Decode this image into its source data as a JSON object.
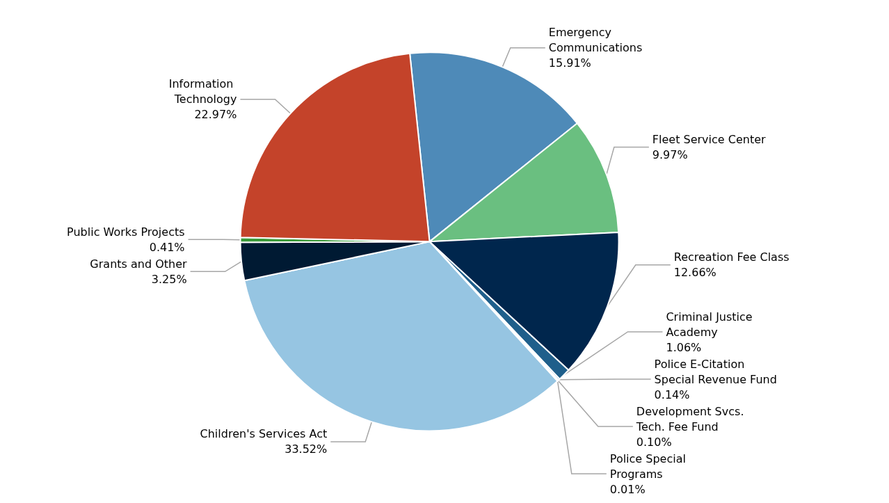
{
  "chart_data": {
    "type": "pie",
    "categories": [
      "Emergency Communications",
      "Fleet Service Center",
      "Recreation Fee Class",
      "Criminal Justice Academy",
      "Police E-Citation Special Revenue Fund",
      "Development Svcs. Tech. Fee Fund",
      "Police Special Programs",
      "Children's Services Act",
      "Grants and Other",
      "Public Works Projects",
      "Information Technology"
    ],
    "values": [
      15.91,
      9.97,
      12.66,
      1.06,
      0.14,
      0.1,
      0.01,
      33.52,
      3.25,
      0.41,
      22.97
    ],
    "value_labels": [
      "15.91%",
      "9.97%",
      "12.66%",
      "1.06%",
      "0.14%",
      "0.10%",
      "0.01%",
      "33.52%",
      "3.25%",
      "0.41%",
      "22.97%"
    ],
    "colors": [
      "#4e8ab8",
      "#6abf80",
      "#00264d",
      "#1f5f8b",
      "#5b9bd5",
      "#a5a5a5",
      "#70ad47",
      "#96c5e2",
      "#001a33",
      "#3a9a3a",
      "#c4432a"
    ],
    "legend": false
  }
}
